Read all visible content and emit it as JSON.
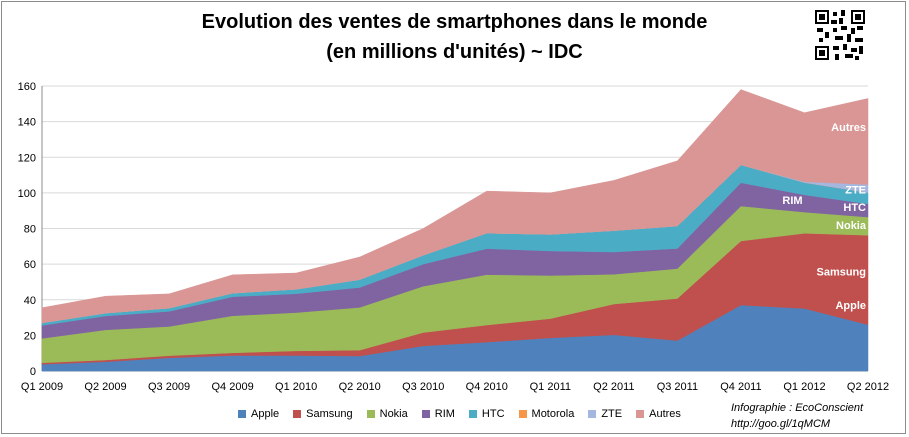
{
  "title_line1": "Evolution des ventes de smartphones dans le monde",
  "title_line2": "(en millions d'unités) ~ IDC",
  "credit_line1": "Infographie : EcoConscient",
  "credit_line2": "http://goo.gl/1qMCM",
  "chart_data": {
    "type": "area",
    "stacked": true,
    "categories": [
      "Q1 2009",
      "Q2 2009",
      "Q3 2009",
      "Q4 2009",
      "Q1 2010",
      "Q2 2010",
      "Q3 2010",
      "Q4 2010",
      "Q1 2011",
      "Q2 2011",
      "Q3 2011",
      "Q4 2011",
      "Q1 2012",
      "Q2 2012"
    ],
    "ylim": [
      0,
      160
    ],
    "yticks": [
      0,
      20,
      40,
      60,
      80,
      100,
      120,
      140,
      160
    ],
    "grid": true,
    "legend_position": "bottom",
    "series": [
      {
        "name": "Apple",
        "color": "#4f81bd",
        "values": [
          3.8,
          5.2,
          7.4,
          8.7,
          8.7,
          8.4,
          14.1,
          16.2,
          18.6,
          20.3,
          17.1,
          37.0,
          35.1,
          26.0
        ]
      },
      {
        "name": "Samsung",
        "color": "#c0504d",
        "values": [
          0.8,
          1.0,
          1.2,
          1.5,
          2.6,
          3.3,
          7.5,
          9.6,
          10.8,
          17.3,
          23.6,
          36.0,
          42.2,
          50.2
        ]
      },
      {
        "name": "Nokia",
        "color": "#9bbb59",
        "values": [
          13.7,
          16.9,
          16.4,
          20.8,
          21.5,
          24.0,
          26.0,
          28.3,
          24.2,
          16.7,
          16.8,
          19.6,
          11.9,
          10.2
        ]
      },
      {
        "name": "RIM",
        "color": "#8064a2",
        "values": [
          7.3,
          7.8,
          8.5,
          10.7,
          10.6,
          11.2,
          12.4,
          14.6,
          13.8,
          12.5,
          11.3,
          13.1,
          9.7,
          7.4
        ]
      },
      {
        "name": "HTC",
        "color": "#4bacc6",
        "values": [
          1.4,
          1.6,
          1.8,
          2.0,
          2.5,
          4.4,
          5.0,
          8.7,
          9.3,
          12.0,
          12.6,
          10.0,
          6.9,
          6.4
        ]
      },
      {
        "name": "Motorola",
        "color": "#f79646",
        "values": [
          0,
          0,
          0,
          0,
          0,
          0,
          0,
          0,
          0,
          0,
          0,
          0,
          0,
          0
        ]
      },
      {
        "name": "ZTE",
        "color": "#a5b6df",
        "values": [
          0,
          0,
          0,
          0,
          0,
          0,
          0,
          0,
          0,
          0,
          0,
          0,
          0.5,
          4.5
        ]
      },
      {
        "name": "Autres",
        "color": "#d99694",
        "values": [
          8.5,
          9.5,
          8.0,
          10.3,
          9.1,
          12.7,
          15.0,
          23.6,
          23.3,
          28.2,
          36.6,
          42.3,
          38.7,
          48.3
        ]
      }
    ],
    "annotations": [
      {
        "text": "Autres",
        "x": "Q2 2012",
        "y": 137
      },
      {
        "text": "ZTE",
        "x": "Q2 2012",
        "y": 102
      },
      {
        "text": "HTC",
        "x": "Q2 2012",
        "y": 92
      },
      {
        "text": "Nokia",
        "x": "Q2 2012",
        "y": 82
      },
      {
        "text": "RIM",
        "x": "Q1 2012",
        "y": 96
      },
      {
        "text": "Samsung",
        "x": "Q2 2012",
        "y": 56
      },
      {
        "text": "Apple",
        "x": "Q2 2012",
        "y": 37
      }
    ]
  }
}
